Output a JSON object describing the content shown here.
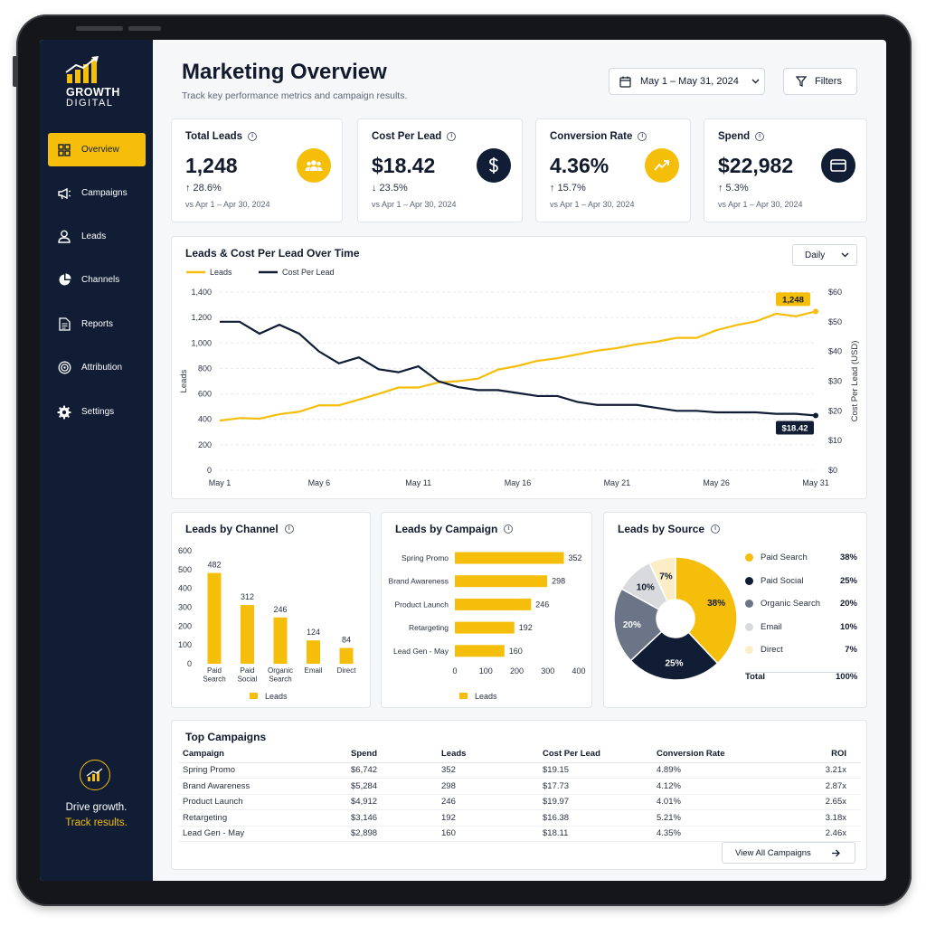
{
  "brand": {
    "name_line1": "GROWTH",
    "name_line2": "DIGITAL",
    "tagline_line1": "Drive growth.",
    "tagline_line2": "Track results.",
    "accent": "#f5be0b",
    "navy": "#101d35"
  },
  "sidebar": {
    "items": [
      {
        "label": "Overview",
        "icon": "grid-icon",
        "active": true
      },
      {
        "label": "Campaigns",
        "icon": "megaphone-icon"
      },
      {
        "label": "Leads",
        "icon": "user-icon"
      },
      {
        "label": "Channels",
        "icon": "pie-icon"
      },
      {
        "label": "Reports",
        "icon": "document-icon"
      },
      {
        "label": "Attribution",
        "icon": "target-icon"
      },
      {
        "label": "Settings",
        "icon": "gear-icon"
      }
    ]
  },
  "header": {
    "title": "Marketing Overview",
    "subtitle": "Track key performance metrics and campaign results.",
    "date_range": "May 1 – May 31, 2024",
    "filters_label": "Filters"
  },
  "kpis": [
    {
      "label": "Total Leads",
      "value": "1,248",
      "change": "↑ 28.6%",
      "period": "vs Apr 1 – Apr 30, 2024",
      "icon": "people-icon"
    },
    {
      "label": "Cost Per Lead",
      "value": "$18.42",
      "change": "↓ 23.5%",
      "period": "vs Apr 1 – Apr 30, 2024",
      "icon": "dollar-icon"
    },
    {
      "label": "Conversion Rate",
      "value": "4.36%",
      "change": "↑ 15.7%",
      "period": "vs Apr 1 – Apr 30, 2024",
      "icon": "trend-icon"
    },
    {
      "label": "Spend",
      "value": "$22,982",
      "change": "↑ 5.3%",
      "period": "vs Apr 1 – Apr 30, 2024",
      "icon": "card-icon"
    }
  ],
  "line_chart": {
    "title": "Leads & Cost Per Lead Over Time",
    "period_select": "Daily",
    "end_label_leads": "1,248",
    "end_label_cpl": "$18.42"
  },
  "bar_channel": {
    "title": "Leads by Channel"
  },
  "bar_campaign": {
    "title": "Leads by Campaign"
  },
  "source": {
    "title": "Leads by Source",
    "total_label": "Total",
    "total_value": "100%"
  },
  "table": {
    "title": "Top Campaigns",
    "headers": [
      "Campaign",
      "Spend",
      "Leads",
      "Cost Per Lead",
      "Conversion Rate",
      "ROI"
    ],
    "rows": [
      [
        "Spring Promo",
        "$6,742",
        "352",
        "$19.15",
        "4.89%",
        "3.21x"
      ],
      [
        "Brand Awareness",
        "$5,284",
        "298",
        "$17.73",
        "4.12%",
        "2.87x"
      ],
      [
        "Product Launch",
        "$4,912",
        "246",
        "$19.97",
        "4.01%",
        "2.65x"
      ],
      [
        "Retargeting",
        "$3,146",
        "192",
        "$16.38",
        "5.21%",
        "3.18x"
      ],
      [
        "Lead Gen - May",
        "$2,898",
        "160",
        "$18.11",
        "4.35%",
        "2.46x"
      ]
    ],
    "view_all_label": "View All Campaigns"
  },
  "chart_data": [
    {
      "type": "line",
      "title": "Leads & Cost Per Lead Over Time",
      "x": [
        1,
        2,
        3,
        4,
        5,
        6,
        7,
        8,
        9,
        10,
        11,
        12,
        13,
        14,
        15,
        16,
        17,
        18,
        19,
        20,
        21,
        22,
        23,
        24,
        25,
        26,
        27,
        28,
        29,
        30,
        31
      ],
      "x_ticks": [
        "May 1",
        "May 6",
        "May 11",
        "May 16",
        "May 21",
        "May 26",
        "May 31"
      ],
      "ylabel": "Leads",
      "y2label": "Cost Per Lead (USD)",
      "ylim": [
        0,
        1400
      ],
      "y_ticks": [
        "0",
        "200",
        "400",
        "600",
        "800",
        "1,000",
        "1,200",
        "1,400"
      ],
      "y2lim": [
        0,
        60
      ],
      "y2_ticks": [
        "$0",
        "$10",
        "$20",
        "$30",
        "$40",
        "$50",
        "$60"
      ],
      "grid": true,
      "legend": "top-left",
      "series": [
        {
          "name": "Leads",
          "axis": "left",
          "color": "#f5be0b",
          "values": [
            390,
            410,
            405,
            440,
            460,
            510,
            510,
            555,
            600,
            650,
            650,
            690,
            700,
            720,
            790,
            820,
            860,
            880,
            910,
            940,
            960,
            990,
            1010,
            1040,
            1040,
            1100,
            1140,
            1170,
            1230,
            1210,
            1248
          ]
        },
        {
          "name": "Cost Per Lead",
          "axis": "right",
          "color": "#101d35",
          "values": [
            50,
            50,
            46,
            49,
            46,
            40,
            36,
            38,
            34,
            33,
            35,
            30,
            28,
            27,
            27,
            26,
            25,
            25,
            23,
            22,
            22,
            22,
            21,
            20,
            20,
            19.5,
            19.5,
            19.5,
            19,
            19,
            18.42
          ]
        }
      ]
    },
    {
      "type": "bar",
      "title": "Leads by Channel",
      "categories": [
        "Paid Search",
        "Paid Social",
        "Organic Search",
        "Email",
        "Direct"
      ],
      "values": [
        482,
        312,
        246,
        124,
        84
      ],
      "ylim": [
        0,
        600
      ],
      "y_ticks": [
        "0",
        "100",
        "200",
        "300",
        "400",
        "500",
        "600"
      ],
      "series_name": "Leads",
      "legend": "bottom",
      "color": "#f5be0b"
    },
    {
      "type": "bar",
      "orientation": "horizontal",
      "title": "Leads by Campaign",
      "categories": [
        "Spring Promo",
        "Brand Awareness",
        "Product Launch",
        "Retargeting",
        "Lead Gen - May"
      ],
      "values": [
        352,
        298,
        246,
        192,
        160
      ],
      "xlim": [
        0,
        400
      ],
      "x_ticks": [
        "0",
        "100",
        "200",
        "300",
        "400"
      ],
      "series_name": "Leads",
      "legend": "bottom",
      "color": "#f5be0b"
    },
    {
      "type": "pie",
      "title": "Leads by Source",
      "labels": [
        "Paid Search",
        "Paid Social",
        "Organic Search",
        "Email",
        "Direct"
      ],
      "values": [
        38,
        25,
        20,
        10,
        7
      ],
      "value_labels": [
        "38%",
        "25%",
        "20%",
        "10%",
        "7%"
      ],
      "colors": [
        "#f5be0b",
        "#101d35",
        "#6b7587",
        "#d9dadd",
        "#fbeec6"
      ],
      "legend": "right"
    }
  ]
}
